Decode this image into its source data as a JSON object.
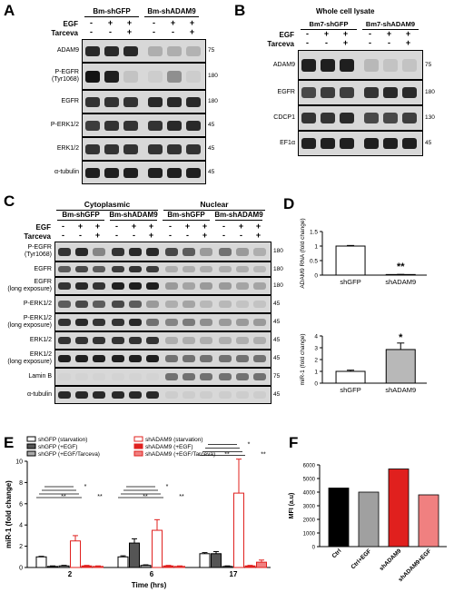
{
  "panels": {
    "A": {
      "label": "A",
      "groups": [
        "Bm-shGFP",
        "Bm-shADAM9"
      ],
      "treat": [
        {
          "name": "EGF",
          "signs": [
            "-",
            "+",
            "+",
            "-",
            "+",
            "+"
          ]
        },
        {
          "name": "Tarceva",
          "signs": [
            "-",
            "-",
            "+",
            "-",
            "-",
            "+"
          ]
        }
      ],
      "rows": [
        {
          "label": "ADAM9",
          "mw": "75",
          "int": [
            0.85,
            0.85,
            0.85,
            0.2,
            0.2,
            0.18
          ]
        },
        {
          "label": "P-EGFR\n(Tyr1068)",
          "mw": "180",
          "int": [
            0.95,
            0.9,
            0.1,
            0.05,
            0.35,
            0.05
          ]
        },
        {
          "label": "EGFR",
          "mw": "180",
          "int": [
            0.8,
            0.8,
            0.8,
            0.85,
            0.85,
            0.85
          ]
        },
        {
          "label": "P-ERK1/2",
          "mw": "45",
          "int": [
            0.75,
            0.8,
            0.8,
            0.8,
            0.85,
            0.85
          ]
        },
        {
          "label": "ERK1/2",
          "mw": "45",
          "int": [
            0.8,
            0.8,
            0.8,
            0.8,
            0.8,
            0.8
          ]
        },
        {
          "label": "α-tubulin",
          "mw": "45",
          "int": [
            0.9,
            0.9,
            0.9,
            0.9,
            0.9,
            0.9
          ]
        }
      ]
    },
    "B": {
      "label": "B",
      "header": "Whole cell lysate",
      "groups": [
        "Bm7-shGFP",
        "Bm7-shADAM9"
      ],
      "treat": [
        {
          "name": "EGF",
          "signs": [
            "-",
            "+",
            "+",
            "-",
            "+",
            "+"
          ]
        },
        {
          "name": "Tarceva",
          "signs": [
            "-",
            "-",
            "+",
            "-",
            "-",
            "+"
          ]
        }
      ],
      "rows": [
        {
          "label": "ADAM9",
          "mw": "75",
          "int": [
            0.9,
            0.9,
            0.9,
            0.15,
            0.1,
            0.1
          ]
        },
        {
          "label": "EGFR",
          "mw": "180",
          "int": [
            0.7,
            0.75,
            0.75,
            0.8,
            0.85,
            0.85
          ]
        },
        {
          "label": "CDCP1",
          "mw": "130",
          "int": [
            0.8,
            0.8,
            0.85,
            0.7,
            0.7,
            0.75
          ]
        },
        {
          "label": "EF1α",
          "mw": "45",
          "int": [
            0.9,
            0.9,
            0.9,
            0.9,
            0.9,
            0.9
          ]
        }
      ]
    },
    "C": {
      "label": "C",
      "fractions": [
        "Cytoplasmic",
        "Nuclear"
      ],
      "groups": [
        "Bm-shGFP",
        "Bm-shADAM9",
        "Bm-shGFP",
        "Bm-shADAM9"
      ],
      "treat": [
        {
          "name": "EGF",
          "signs": [
            "-",
            "+",
            "+",
            "-",
            "+",
            "+",
            "-",
            "+",
            "+",
            "-",
            "+",
            "+"
          ]
        },
        {
          "name": "Tarceva",
          "signs": [
            "-",
            "-",
            "+",
            "-",
            "-",
            "+",
            "-",
            "-",
            "+",
            "-",
            "-",
            "+"
          ]
        }
      ],
      "rows": [
        {
          "label": "P-EGFR\n(Tyr1068)",
          "mw": "180",
          "int": [
            0.8,
            0.85,
            0.4,
            0.8,
            0.85,
            0.85,
            0.7,
            0.6,
            0.3,
            0.5,
            0.3,
            0.2
          ]
        },
        {
          "label": "EGFR",
          "mw": "180",
          "int": [
            0.6,
            0.7,
            0.6,
            0.75,
            0.8,
            0.75,
            0.2,
            0.2,
            0.2,
            0.2,
            0.2,
            0.15
          ]
        },
        {
          "label": "EGFR\n(long exposure)",
          "mw": "180",
          "int": [
            0.8,
            0.85,
            0.8,
            0.9,
            0.9,
            0.9,
            0.3,
            0.25,
            0.3,
            0.3,
            0.25,
            0.25
          ]
        },
        {
          "label": "P-ERK1/2",
          "mw": "45",
          "int": [
            0.6,
            0.7,
            0.6,
            0.7,
            0.6,
            0.3,
            0.2,
            0.25,
            0.15,
            0.15,
            0.1,
            0.1
          ]
        },
        {
          "label": "P-ERK1/2\n(long exposure)",
          "mw": "45",
          "int": [
            0.8,
            0.85,
            0.8,
            0.8,
            0.85,
            0.5,
            0.4,
            0.45,
            0.35,
            0.3,
            0.3,
            0.3
          ]
        },
        {
          "label": "ERK1/2",
          "mw": "45",
          "int": [
            0.8,
            0.8,
            0.8,
            0.8,
            0.8,
            0.8,
            0.2,
            0.2,
            0.2,
            0.2,
            0.2,
            0.2
          ]
        },
        {
          "label": "ERK1/2\n(long exposure)",
          "mw": "45",
          "int": [
            0.9,
            0.9,
            0.9,
            0.9,
            0.9,
            0.9,
            0.5,
            0.5,
            0.5,
            0.5,
            0.5,
            0.5
          ]
        },
        {
          "label": "Lamin B",
          "mw": "75",
          "int": [
            0.02,
            0.02,
            0.02,
            0.02,
            0.02,
            0.02,
            0.5,
            0.5,
            0.5,
            0.5,
            0.5,
            0.5
          ]
        },
        {
          "label": "α-tubulin",
          "mw": "45",
          "int": [
            0.85,
            0.85,
            0.85,
            0.85,
            0.85,
            0.85,
            0.05,
            0.05,
            0.05,
            0.05,
            0.05,
            0.05
          ]
        }
      ]
    },
    "D": {
      "label": "D"
    },
    "E": {
      "label": "E"
    },
    "F": {
      "label": "F"
    }
  },
  "chart_data": [
    {
      "id": "D-top",
      "type": "bar",
      "categories": [
        "shGFP",
        "shADAM9"
      ],
      "values": [
        1.0,
        0.02
      ],
      "errors": [
        0.02,
        0.005
      ],
      "ylabel": "ADAM9 RNA (fold change)",
      "ylim": [
        0,
        1.5
      ],
      "yticks": [
        "0",
        "0.5",
        "1",
        "1.5"
      ],
      "annotation": "**",
      "colors": [
        "#ffffff",
        "#ffffff"
      ]
    },
    {
      "id": "D-bottom",
      "type": "bar",
      "categories": [
        "shGFP",
        "shADAM9"
      ],
      "values": [
        1.0,
        2.85
      ],
      "errors": [
        0.1,
        0.55
      ],
      "ylabel": "miR-1 (fold change)",
      "ylim": [
        0,
        4
      ],
      "yticks": [
        "0",
        "1",
        "2",
        "3",
        "4"
      ],
      "annotation": "*",
      "colors": [
        "#ffffff",
        "#b8b8b8"
      ]
    },
    {
      "id": "E",
      "type": "bar",
      "categories": [
        "2",
        "6",
        "17"
      ],
      "xlabel": "Time (hrs)",
      "ylabel": "miR-1 (fold change)",
      "ylim": [
        0,
        10
      ],
      "yticks": [
        "0",
        "2",
        "4",
        "6",
        "8",
        "10"
      ],
      "legend": [
        "shGFP (starvation)",
        "shGFP (+EGF)",
        "shGFP (+EGF/Tarceva)",
        "shADAM9 (starvation)",
        "shADAM9 (+EGF)",
        "shADAM9 (+EGF/Tarceva)"
      ],
      "legend_position": "top",
      "series": [
        {
          "name": "shGFP (starvation)",
          "values": [
            1.0,
            1.0,
            1.3
          ],
          "errors": [
            0.05,
            0.1,
            0.1
          ],
          "fill": "#ffffff",
          "stroke": "#000000"
        },
        {
          "name": "shGFP (+EGF)",
          "values": [
            0.1,
            2.3,
            1.3
          ],
          "errors": [
            0.05,
            0.4,
            0.2
          ],
          "fill": "#555555",
          "stroke": "#000000"
        },
        {
          "name": "shGFP (+EGF/Tarceva)",
          "values": [
            0.15,
            0.2,
            0.1
          ],
          "errors": [
            0.05,
            0.05,
            0.05
          ],
          "fill": "#aaaaaa",
          "stroke": "#000000"
        },
        {
          "name": "shADAM9 (starvation)",
          "values": [
            2.5,
            3.5,
            7.0
          ],
          "errors": [
            0.5,
            1.0,
            3.2
          ],
          "fill": "#ffffff",
          "stroke": "#e0201e"
        },
        {
          "name": "shADAM9 (+EGF)",
          "values": [
            0.15,
            0.15,
            0.15
          ],
          "errors": [
            0.05,
            0.05,
            0.05
          ],
          "fill": "#e0201e",
          "stroke": "#e0201e"
        },
        {
          "name": "shADAM9 (+EGF/Tarceva)",
          "values": [
            0.1,
            0.1,
            0.5
          ],
          "errors": [
            0.05,
            0.05,
            0.2
          ],
          "fill": "#f08080",
          "stroke": "#e0201e"
        }
      ],
      "sig": [
        "*",
        "**"
      ]
    },
    {
      "id": "F",
      "type": "bar",
      "categories": [
        "Ctrl",
        "Ctrl+EGF",
        "shADAM9",
        "shADAM9+EGF"
      ],
      "values": [
        4300,
        4000,
        5700,
        3800
      ],
      "ylabel": "MFI (a.u)",
      "ylim": [
        0,
        6000
      ],
      "yticks": [
        "0",
        "1000",
        "2000",
        "3000",
        "4000",
        "5000",
        "6000"
      ],
      "colors": [
        "#000000",
        "#a0a0a0",
        "#e0201e",
        "#f08080"
      ]
    }
  ]
}
